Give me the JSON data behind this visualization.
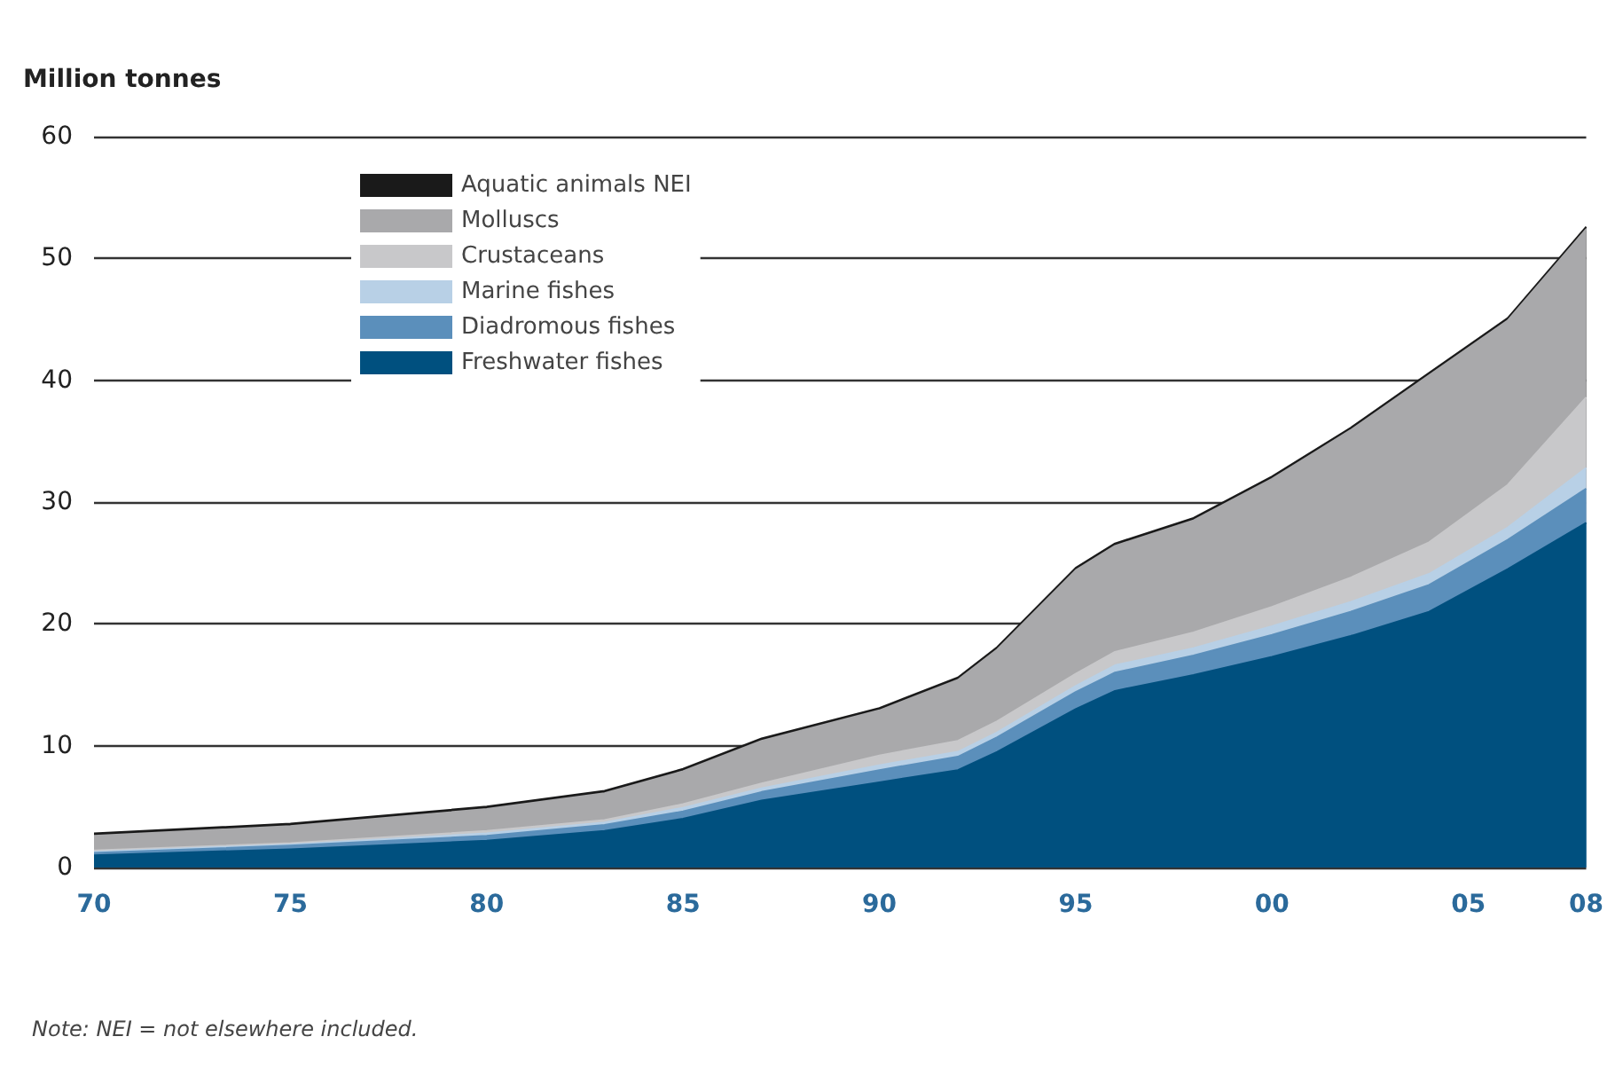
{
  "chart_data": {
    "type": "area",
    "stacked": true,
    "ylabel": "Million tonnes",
    "annotations": [
      "Note: NEI = not elsewhere included."
    ],
    "x": [
      1970,
      1975,
      1980,
      1983,
      1985,
      1987,
      1990,
      1992,
      1993,
      1995,
      1996,
      1998,
      2000,
      2002,
      2004,
      2006,
      2008
    ],
    "xlim": [
      1970,
      2008
    ],
    "xticks": [
      {
        "value": 1970,
        "label": "70"
      },
      {
        "value": 1975,
        "label": "75"
      },
      {
        "value": 1980,
        "label": "80"
      },
      {
        "value": 1985,
        "label": "85"
      },
      {
        "value": 1990,
        "label": "90"
      },
      {
        "value": 1995,
        "label": "95"
      },
      {
        "value": 2000,
        "label": "00"
      },
      {
        "value": 2005,
        "label": "05"
      },
      {
        "value": 2008,
        "label": "08"
      }
    ],
    "ylim": [
      0,
      60
    ],
    "yticks": [
      0,
      10,
      20,
      30,
      40,
      50,
      60
    ],
    "grid": "y",
    "legend": "top left",
    "series": [
      {
        "name": "Freshwater fishes",
        "color": "#00507f",
        "values": [
          1.0,
          1.5,
          2.2,
          3.0,
          4.0,
          5.5,
          7.0,
          8.0,
          9.5,
          13.0,
          14.5,
          15.8,
          17.3,
          19.0,
          21.0,
          24.5,
          28.3
        ]
      },
      {
        "name": "Diadromous fishes",
        "color": "#5b8fbb",
        "values": [
          0.2,
          0.3,
          0.4,
          0.5,
          0.6,
          0.7,
          1.0,
          1.1,
          1.2,
          1.4,
          1.5,
          1.6,
          1.8,
          2.0,
          2.2,
          2.4,
          2.8
        ]
      },
      {
        "name": "Marine fishes",
        "color": "#b8d0e6",
        "values": [
          0.1,
          0.1,
          0.2,
          0.2,
          0.3,
          0.3,
          0.4,
          0.4,
          0.4,
          0.5,
          0.6,
          0.6,
          0.7,
          0.8,
          0.9,
          1.0,
          1.7
        ]
      },
      {
        "name": "Crustaceans",
        "color": "#c8c8ca",
        "values": [
          0.1,
          0.1,
          0.2,
          0.2,
          0.3,
          0.4,
          0.8,
          0.9,
          0.9,
          1.0,
          1.1,
          1.3,
          1.6,
          2.0,
          2.6,
          3.5,
          5.8
        ]
      },
      {
        "name": "Molluscs",
        "color": "#a9a9ab",
        "values": [
          1.2,
          1.4,
          1.8,
          2.2,
          2.7,
          3.5,
          3.7,
          5.0,
          5.9,
          8.5,
          8.7,
          9.2,
          10.5,
          12.1,
          13.7,
          13.5,
          13.8
        ]
      },
      {
        "name": "Aquatic animals NEI",
        "color": "#1a1a1a",
        "values": [
          0.2,
          0.2,
          0.2,
          0.2,
          0.2,
          0.2,
          0.2,
          0.2,
          0.2,
          0.2,
          0.2,
          0.2,
          0.2,
          0.2,
          0.2,
          0.2,
          0.2
        ]
      }
    ]
  }
}
